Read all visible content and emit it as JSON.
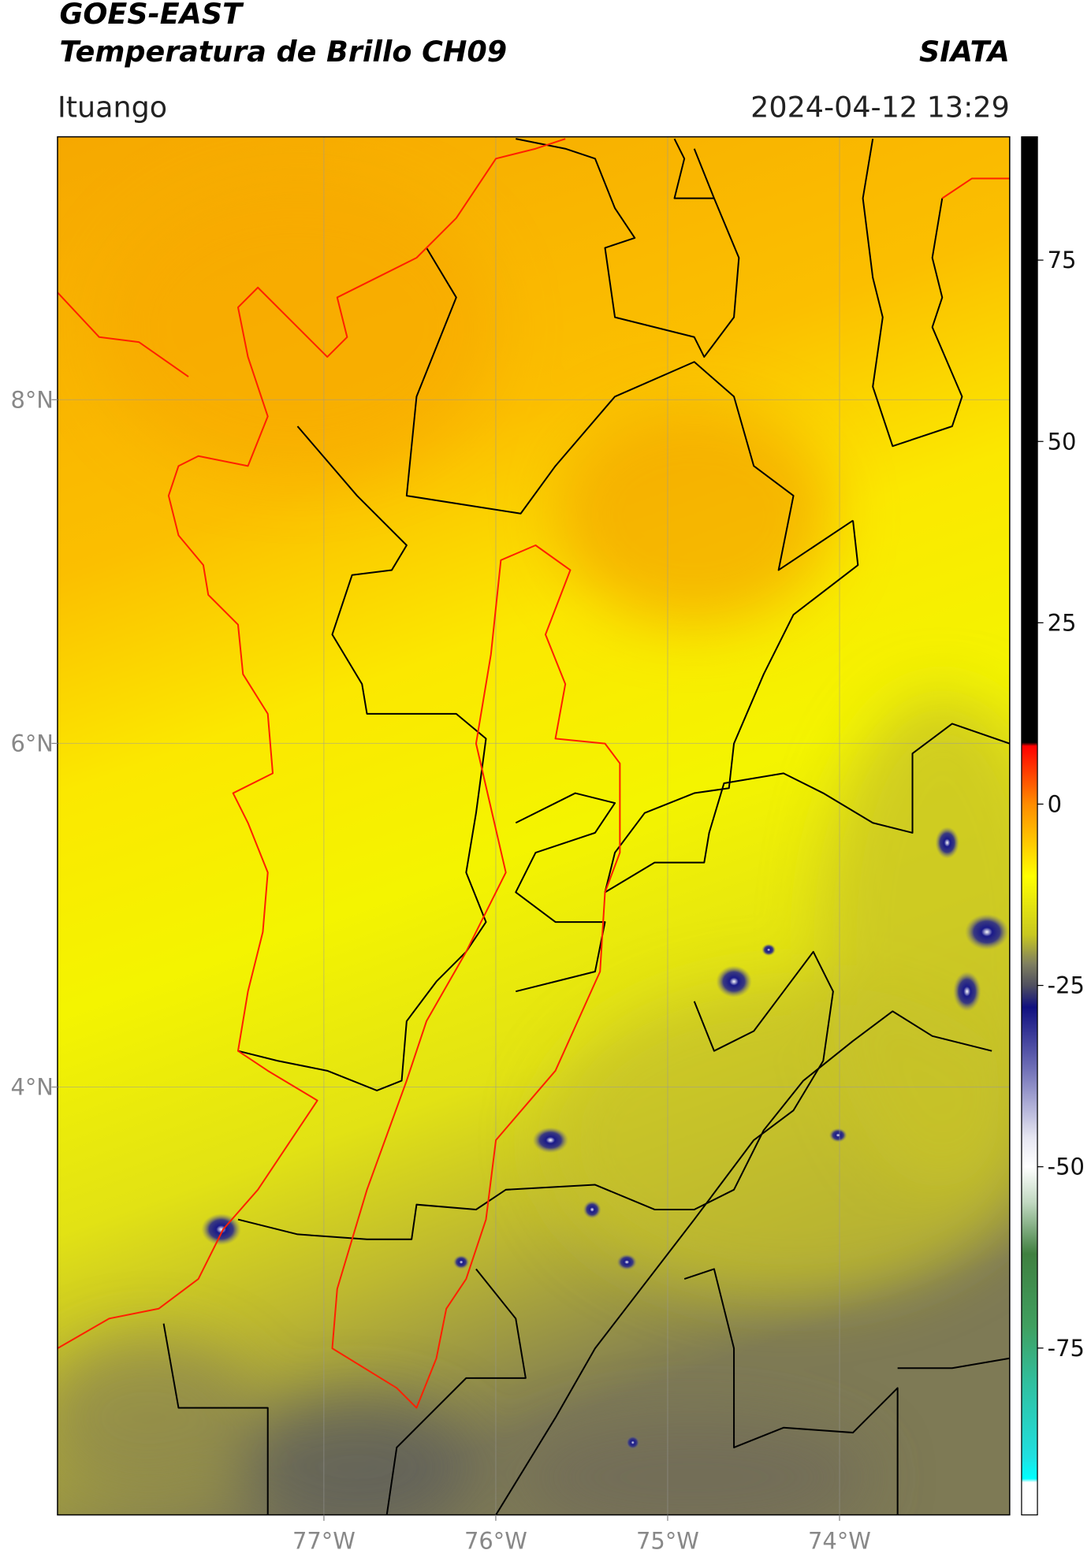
{
  "header": {
    "title": "GOES-EAST",
    "subtitle": "Temperatura de Brillo CH09",
    "brand": "SIATA",
    "location": "Ituango",
    "datetime": "2024-04-12 13:29"
  },
  "map": {
    "xlim": [
      -78.55,
      -73.01
    ],
    "ylim": [
      1.51,
      9.53
    ],
    "xticks": [
      {
        "value": -77,
        "label": "77°W"
      },
      {
        "value": -76,
        "label": "76°W"
      },
      {
        "value": -75,
        "label": "75°W"
      },
      {
        "value": -74,
        "label": "74°W"
      }
    ],
    "yticks": [
      {
        "value": 8,
        "label": "8°N"
      },
      {
        "value": 6,
        "label": "6°N"
      },
      {
        "value": 4,
        "label": "4°N"
      }
    ],
    "grid": true
  },
  "colorbar": {
    "clim": [
      -98,
      92
    ],
    "ticks": [
      75,
      50,
      25,
      0,
      -25,
      -50,
      -75
    ],
    "stops": [
      {
        "value": 92,
        "color": "#000000"
      },
      {
        "value": 8.5,
        "color": "#000000"
      },
      {
        "value": 8,
        "color": "#ff0000"
      },
      {
        "value": 0,
        "color": "#ff8c00"
      },
      {
        "value": -10,
        "color": "#ffff00"
      },
      {
        "value": -18,
        "color": "#c8c820"
      },
      {
        "value": -22,
        "color": "#808060"
      },
      {
        "value": -25,
        "color": "#505060"
      },
      {
        "value": -28,
        "color": "#101080"
      },
      {
        "value": -36,
        "color": "#6a6ab4"
      },
      {
        "value": -46,
        "color": "#e6e6f2"
      },
      {
        "value": -50,
        "color": "#ffffff"
      },
      {
        "value": -55,
        "color": "#c0d8c0"
      },
      {
        "value": -62,
        "color": "#408040"
      },
      {
        "value": -72,
        "color": "#40a060"
      },
      {
        "value": -80,
        "color": "#30c0a0"
      },
      {
        "value": -90,
        "color": "#20e0e0"
      },
      {
        "value": -93,
        "color": "#00ffff"
      },
      {
        "value": -93.5,
        "color": "#ffffff"
      },
      {
        "value": -98,
        "color": "#ffffff"
      }
    ]
  }
}
